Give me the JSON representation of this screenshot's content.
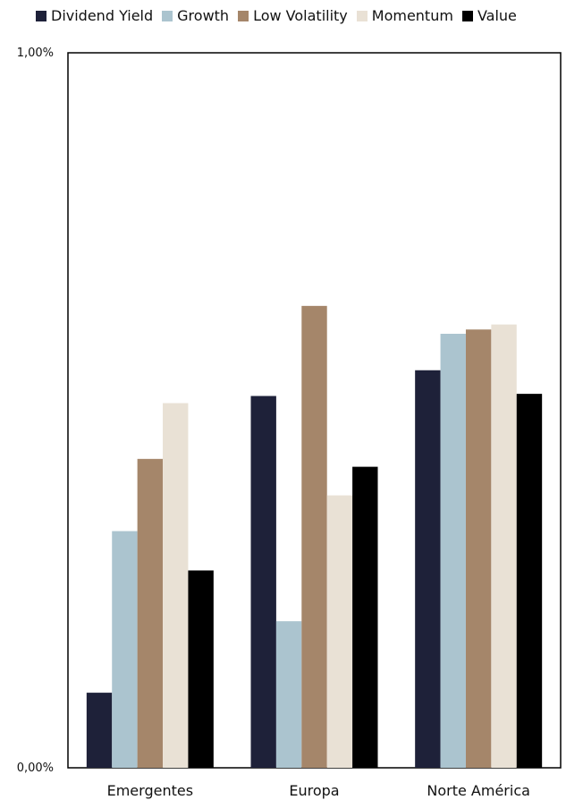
{
  "chart_data": {
    "type": "bar",
    "title": "",
    "xlabel": "",
    "ylabel": "",
    "categories": [
      "Emergentes",
      "Europa",
      "Norte América"
    ],
    "ylim": [
      0,
      1.0
    ],
    "y_ticks": [
      "0,00%",
      "1,00%"
    ],
    "grid": false,
    "legend_position": "top",
    "series": [
      {
        "name": "Dividend Yield",
        "color": "#1e2139",
        "values": [
          0.105,
          0.52,
          0.556
        ]
      },
      {
        "name": "Growth",
        "color": "#abc4cf",
        "values": [
          0.331,
          0.205,
          0.607
        ]
      },
      {
        "name": "Low Volatility",
        "color": "#a5866a",
        "values": [
          0.432,
          0.646,
          0.613
        ]
      },
      {
        "name": "Momentum",
        "color": "#e9e1d5",
        "values": [
          0.51,
          0.381,
          0.62
        ]
      },
      {
        "name": "Value",
        "color": "#000000",
        "values": [
          0.276,
          0.421,
          0.523
        ]
      }
    ]
  }
}
